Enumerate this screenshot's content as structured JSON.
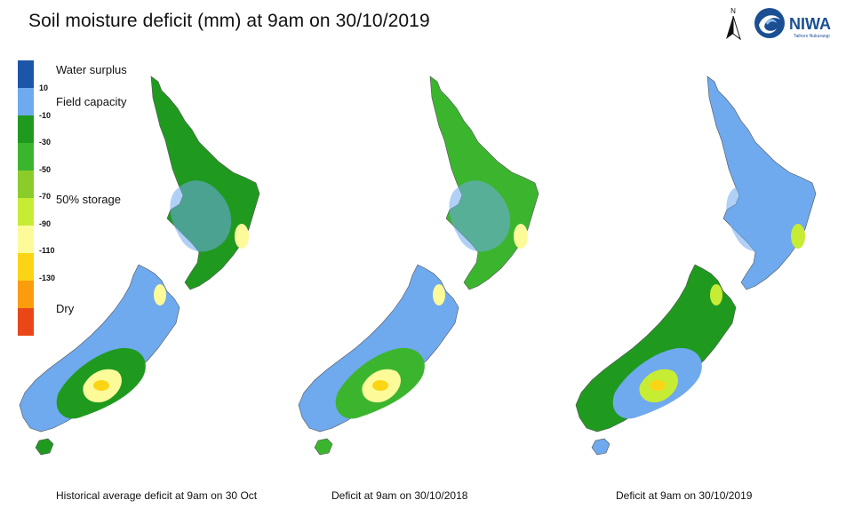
{
  "title": "Soil moisture deficit (mm) at  9am on 30/10/2019",
  "north_label": "N",
  "logo": {
    "name": "NIWA",
    "tagline": "Taihoro Nukurangi",
    "color": "#1b4f94"
  },
  "legend": {
    "colors": [
      "#1c56a8",
      "#6fa9ee",
      "#1f9a1f",
      "#3cb52e",
      "#8bcc2a",
      "#c7ec34",
      "#fdfa9a",
      "#fbd515",
      "#fb9c0c",
      "#ea4618"
    ],
    "ticks": [
      "10",
      "-10",
      "-30",
      "-50",
      "-70",
      "-90",
      "-110",
      "-130"
    ],
    "labels": {
      "surplus": "Water surplus",
      "field": "Field capacity",
      "storage": "50% storage",
      "dry": "Dry"
    }
  },
  "maps": [
    {
      "caption": "Historical average deficit at  9am on 30 Oct",
      "base": "#1f9a1f",
      "coast": "#6fa9ee",
      "hot": "#fdfa9a",
      "core": "#fbd515"
    },
    {
      "caption": "Deficit at  9am on 30/10/2018",
      "base": "#3cb52e",
      "coast": "#6fa9ee",
      "hot": "#fdfa9a",
      "core": "#fbd515"
    },
    {
      "caption": "Deficit at  9am on 30/10/2019",
      "base": "#6fa9ee",
      "coast": "#1f9a1f",
      "hot": "#c7ec34",
      "core": "#fbd515"
    }
  ]
}
